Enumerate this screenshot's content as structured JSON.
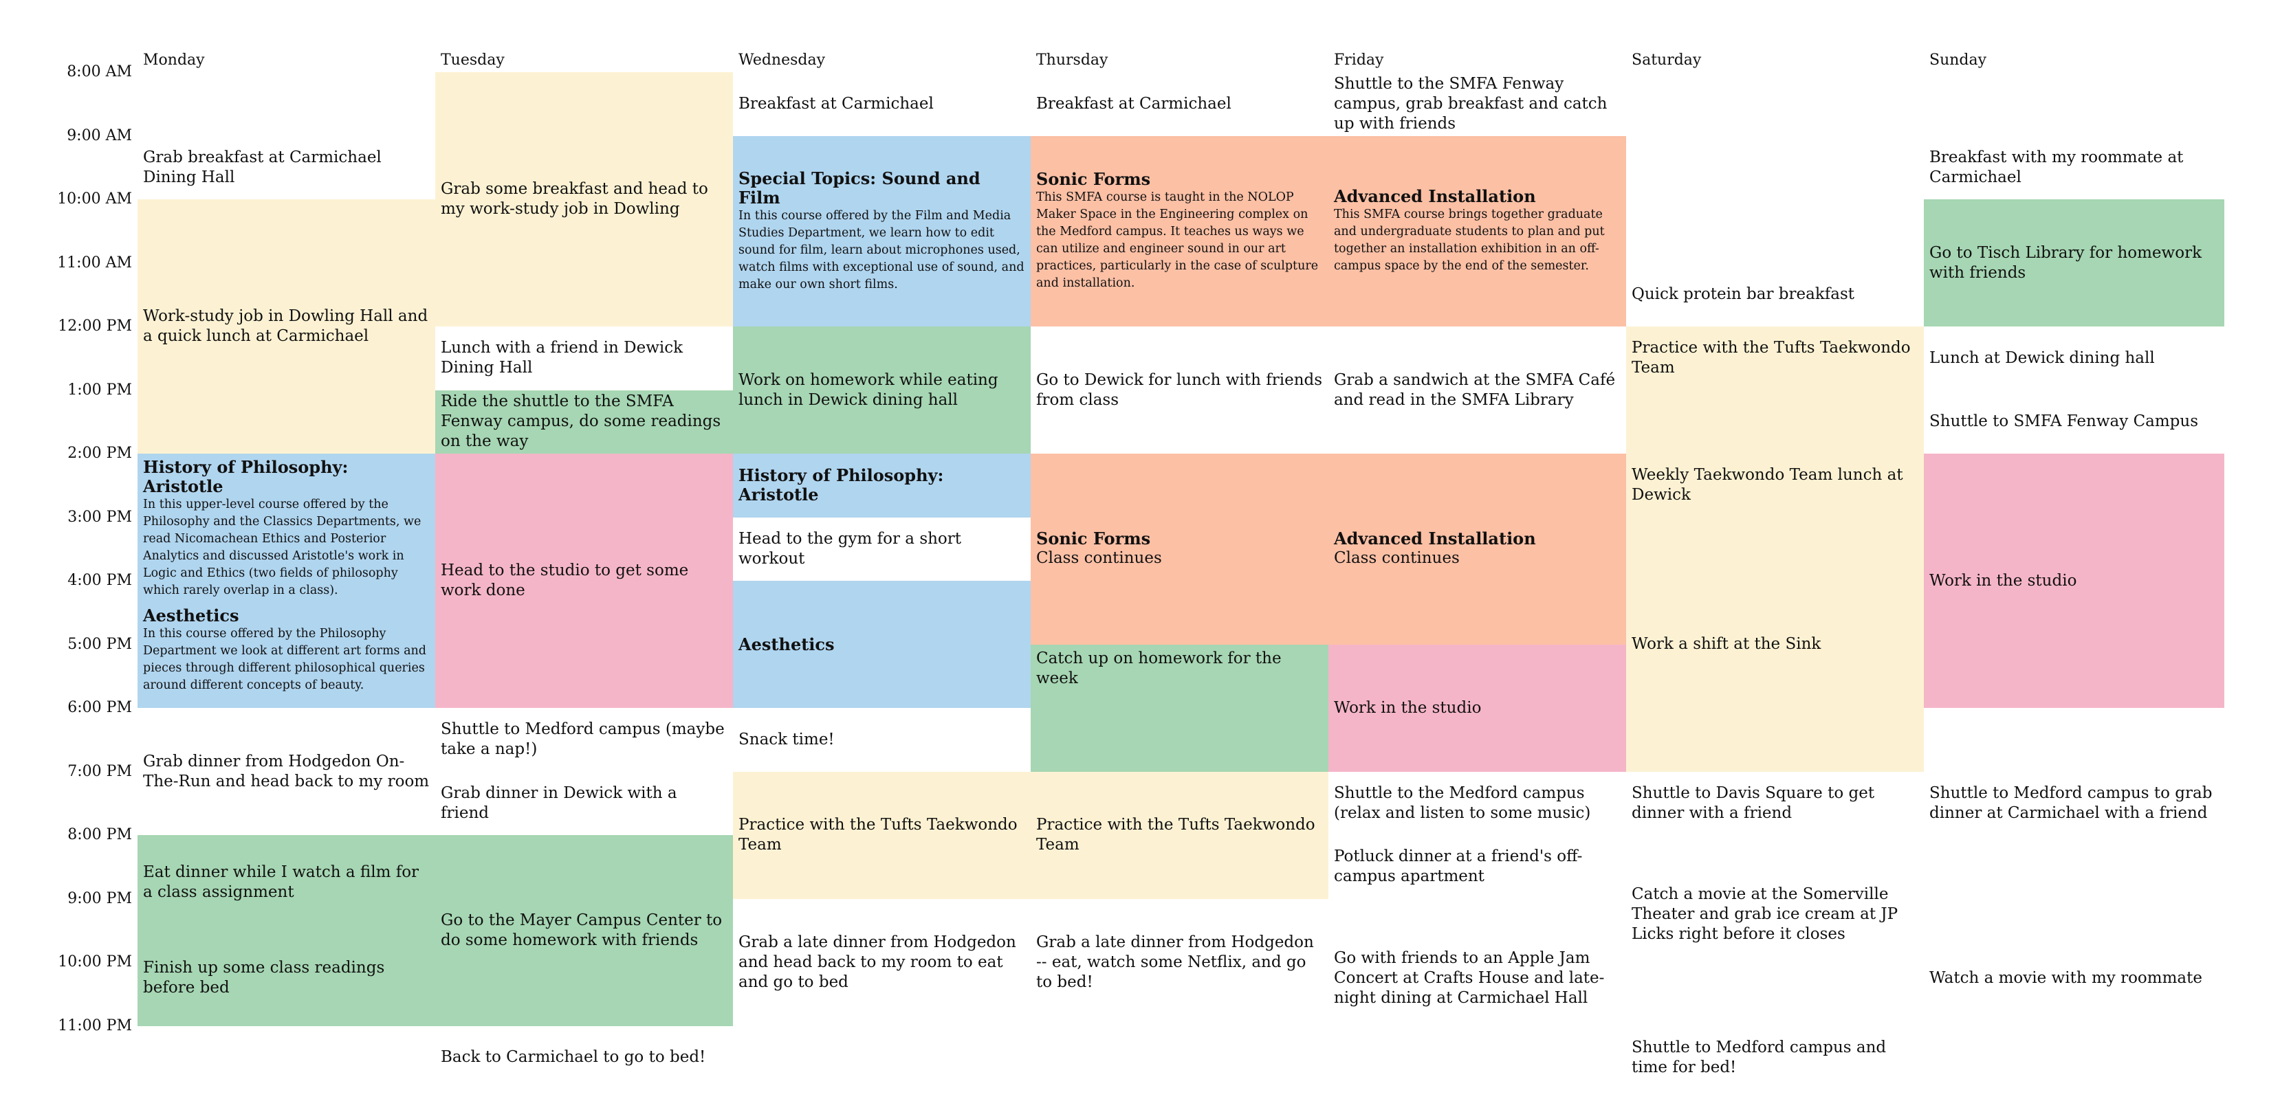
{
  "colors": {
    "yellow": "#fcf2d3",
    "blue": "#b0d5ef",
    "orange": "#fcc0a5",
    "green": "#a6d6b3",
    "pink": "#f5b5c8"
  },
  "days": [
    "Monday",
    "Tuesday",
    "Wednesday",
    "Thursday",
    "Friday",
    "Saturday",
    "Sunday"
  ],
  "times": [
    "8:00 AM",
    "9:00 AM",
    "10:00 AM",
    "11:00 AM",
    "12:00 PM",
    "1:00 PM",
    "2:00 PM",
    "3:00 PM",
    "4:00 PM",
    "5:00 PM",
    "6:00 PM",
    "7:00 PM",
    "8:00 PM",
    "9:00 PM",
    "10:00 PM",
    "11:00 PM"
  ],
  "events": [
    {
      "day": 0,
      "start": 9.0,
      "end": 10.0,
      "color": "",
      "text": "Grab breakfast at Carmichael Dining Hall"
    },
    {
      "day": 0,
      "start": 10.0,
      "end": 14.0,
      "color": "yellow",
      "text": "Work-study job in Dowling Hall and a quick lunch at Carmichael"
    },
    {
      "day": 0,
      "start": 14.0,
      "end": 18.0,
      "color": "blue",
      "align": "top",
      "blocks": [
        {
          "title": "History of Philosophy: Aristotle",
          "desc": "In this upper-level course offered by the Philosophy and the Classics Departments, we read Nicomachean Ethics and Posterior Analytics and discussed Aristotle's work in Logic and Ethics (two fields of philosophy which rarely overlap in a class)."
        },
        {
          "title": "Aesthetics",
          "desc": "In this course offered by the Philosophy Department we look at different art forms and pieces through different philosophical queries around different concepts of beauty."
        }
      ]
    },
    {
      "day": 0,
      "start": 18.0,
      "end": 20.0,
      "color": "",
      "text": "Grab dinner from Hodgedon On-The-Run and head back to my room"
    },
    {
      "day": 0,
      "start": 20.0,
      "end": 21.5,
      "color": "green",
      "text": "Eat dinner while I watch a film for a class assignment"
    },
    {
      "day": 0,
      "start": 21.5,
      "end": 23.0,
      "color": "green",
      "text": "Finish up some class readings before bed"
    },
    {
      "day": 1,
      "start": 8.0,
      "end": 12.0,
      "color": "yellow",
      "text": "Grab some breakfast and head to my work-study job in Dowling"
    },
    {
      "day": 1,
      "start": 12.0,
      "end": 13.0,
      "color": "",
      "text": "Lunch with a friend in Dewick Dining Hall"
    },
    {
      "day": 1,
      "start": 13.0,
      "end": 14.0,
      "color": "green",
      "text": "Ride the shuttle to the SMFA Fenway campus, do some readings on the way"
    },
    {
      "day": 1,
      "start": 14.0,
      "end": 18.0,
      "color": "pink",
      "text": "Head to the studio to get some work done"
    },
    {
      "day": 1,
      "start": 18.0,
      "end": 19.0,
      "color": "",
      "text": "Shuttle to Medford campus (maybe take a nap!)"
    },
    {
      "day": 1,
      "start": 19.0,
      "end": 20.0,
      "color": "",
      "text": "Grab dinner in Dewick with a friend"
    },
    {
      "day": 1,
      "start": 20.0,
      "end": 23.0,
      "color": "green",
      "text": "Go to the Mayer Campus Center to do some homework with friends"
    },
    {
      "day": 1,
      "start": 23.0,
      "end": 24.0,
      "color": "",
      "text": "Back to Carmichael to go to bed!"
    },
    {
      "day": 2,
      "start": 8.0,
      "end": 9.0,
      "color": "",
      "text": "Breakfast at Carmichael"
    },
    {
      "day": 2,
      "start": 9.0,
      "end": 12.0,
      "color": "blue",
      "blocks": [
        {
          "title": "Special Topics: Sound and Film",
          "desc": "In this course offered by the Film and Media Studies Department, we learn how to edit sound for film, learn about microphones used, watch films with exceptional use of sound, and make our own short films."
        }
      ]
    },
    {
      "day": 2,
      "start": 12.0,
      "end": 14.0,
      "color": "green",
      "text": "Work on homework while eating lunch in Dewick dining hall"
    },
    {
      "day": 2,
      "start": 14.0,
      "end": 15.0,
      "color": "blue",
      "blocks": [
        {
          "title": "History of Philosophy: Aristotle",
          "desc": ""
        }
      ]
    },
    {
      "day": 2,
      "start": 15.0,
      "end": 16.0,
      "color": "",
      "text": "Head to the gym for a short workout"
    },
    {
      "day": 2,
      "start": 16.0,
      "end": 18.0,
      "color": "blue",
      "blocks": [
        {
          "title": "Aesthetics",
          "desc": ""
        }
      ]
    },
    {
      "day": 2,
      "start": 18.0,
      "end": 19.0,
      "color": "",
      "text": "Snack time!"
    },
    {
      "day": 2,
      "start": 19.0,
      "end": 21.0,
      "color": "yellow",
      "text": "Practice with the Tufts Taekwondo Team"
    },
    {
      "day": 2,
      "start": 21.0,
      "end": 23.0,
      "color": "",
      "text": "Grab a late dinner from Hodgedon and head back to my room to eat and go to bed"
    },
    {
      "day": 3,
      "start": 8.0,
      "end": 9.0,
      "color": "",
      "text": "Breakfast at Carmichael"
    },
    {
      "day": 3,
      "start": 9.0,
      "end": 12.0,
      "color": "orange",
      "blocks": [
        {
          "title": "Sonic Forms",
          "desc": "This SMFA course is taught in the NOLOP Maker Space in the Engineering complex on the Medford campus. It teaches us ways we can utilize and engineer sound in our art practices, particularly in the case of sculpture and installation."
        }
      ]
    },
    {
      "day": 3,
      "start": 12.0,
      "end": 14.0,
      "color": "",
      "text": "Go to Dewick for lunch with friends from class"
    },
    {
      "day": 3,
      "start": 14.0,
      "end": 17.0,
      "color": "orange",
      "blocks": [
        {
          "title": "Sonic Forms",
          "text": "Class continues"
        }
      ]
    },
    {
      "day": 3,
      "start": 17.0,
      "end": 19.0,
      "color": "green",
      "align": "top",
      "text": "Catch up on homework for the week"
    },
    {
      "day": 3,
      "start": 19.0,
      "end": 21.0,
      "color": "yellow",
      "text": "Practice with the Tufts Taekwondo Team"
    },
    {
      "day": 3,
      "start": 21.0,
      "end": 23.0,
      "color": "",
      "text": "Grab a late dinner from Hodgedon -- eat, watch some Netflix, and go to bed!"
    },
    {
      "day": 4,
      "start": 8.0,
      "end": 9.0,
      "color": "",
      "text": "Shuttle to the SMFA Fenway campus, grab  breakfast and catch up with friends"
    },
    {
      "day": 4,
      "start": 9.0,
      "end": 12.0,
      "color": "orange",
      "blocks": [
        {
          "title": "Advanced Installation",
          "desc": "This SMFA course brings together graduate and undergraduate students to plan and put together an installation exhibition in an off-campus space by the end of the semester."
        }
      ]
    },
    {
      "day": 4,
      "start": 12.0,
      "end": 14.0,
      "color": "",
      "text": "Grab a sandwich at the SMFA Café and read in the SMFA Library"
    },
    {
      "day": 4,
      "start": 14.0,
      "end": 17.0,
      "color": "orange",
      "blocks": [
        {
          "title": "Advanced Installation",
          "text": "Class continues"
        }
      ]
    },
    {
      "day": 4,
      "start": 17.0,
      "end": 19.0,
      "color": "pink",
      "text": "Work in the studio"
    },
    {
      "day": 4,
      "start": 19.0,
      "end": 20.0,
      "color": "",
      "text": "Shuttle to the Medford campus (relax and listen to some music)"
    },
    {
      "day": 4,
      "start": 20.0,
      "end": 21.0,
      "color": "",
      "text": "Potluck dinner at a friend's off-campus apartment"
    },
    {
      "day": 4,
      "start": 21.5,
      "end": 23.0,
      "color": "",
      "text": "Go with friends to an Apple Jam Concert at Crafts House and late-night dining at Carmichael Hall"
    },
    {
      "day": 5,
      "start": 11.0,
      "end": 12.0,
      "color": "",
      "text": "Quick protein bar breakfast"
    },
    {
      "day": 5,
      "start": 12.0,
      "end": 19.0,
      "color": "yellow",
      "gapBefore": true,
      "segments": [
        {
          "start": 12.0,
          "end": 13.0,
          "text": "Practice with the Tufts Taekwondo Team"
        },
        {
          "start": 14.0,
          "end": 15.0,
          "text": "Weekly Taekwondo Team lunch at Dewick"
        },
        {
          "start": 16.0,
          "end": 18.0,
          "text": "Work a shift at the Sink"
        }
      ]
    },
    {
      "day": 5,
      "start": 19.0,
      "end": 20.0,
      "color": "",
      "text": "Shuttle to Davis Square to get dinner with a friend"
    },
    {
      "day": 5,
      "start": 20.5,
      "end": 22.0,
      "color": "",
      "text": "Catch a movie at the Somerville Theater and grab ice cream at JP Licks right before it closes"
    },
    {
      "day": 5,
      "start": 23.0,
      "end": 24.0,
      "color": "",
      "text": "Shuttle to Medford campus and time for bed!"
    },
    {
      "day": 6,
      "start": 9.0,
      "end": 10.0,
      "color": "",
      "text": "Breakfast with my roommate at Carmichael"
    },
    {
      "day": 6,
      "start": 10.0,
      "end": 12.0,
      "color": "green",
      "text": "Go to Tisch Library for homework with friends"
    },
    {
      "day": 6,
      "start": 12.0,
      "end": 13.0,
      "color": "",
      "text": "Lunch at Dewick dining hall"
    },
    {
      "day": 6,
      "start": 13.0,
      "end": 14.0,
      "color": "",
      "text": "Shuttle to SMFA Fenway Campus"
    },
    {
      "day": 6,
      "start": 14.0,
      "end": 18.0,
      "color": "pink",
      "text": "Work in the studio"
    },
    {
      "day": 6,
      "start": 19.0,
      "end": 20.0,
      "color": "",
      "text": "Shuttle to Medford campus to grab dinner at Carmichael with a friend"
    },
    {
      "day": 6,
      "start": 21.5,
      "end": 23.0,
      "color": "",
      "text": "Watch a movie with my roommate"
    }
  ]
}
